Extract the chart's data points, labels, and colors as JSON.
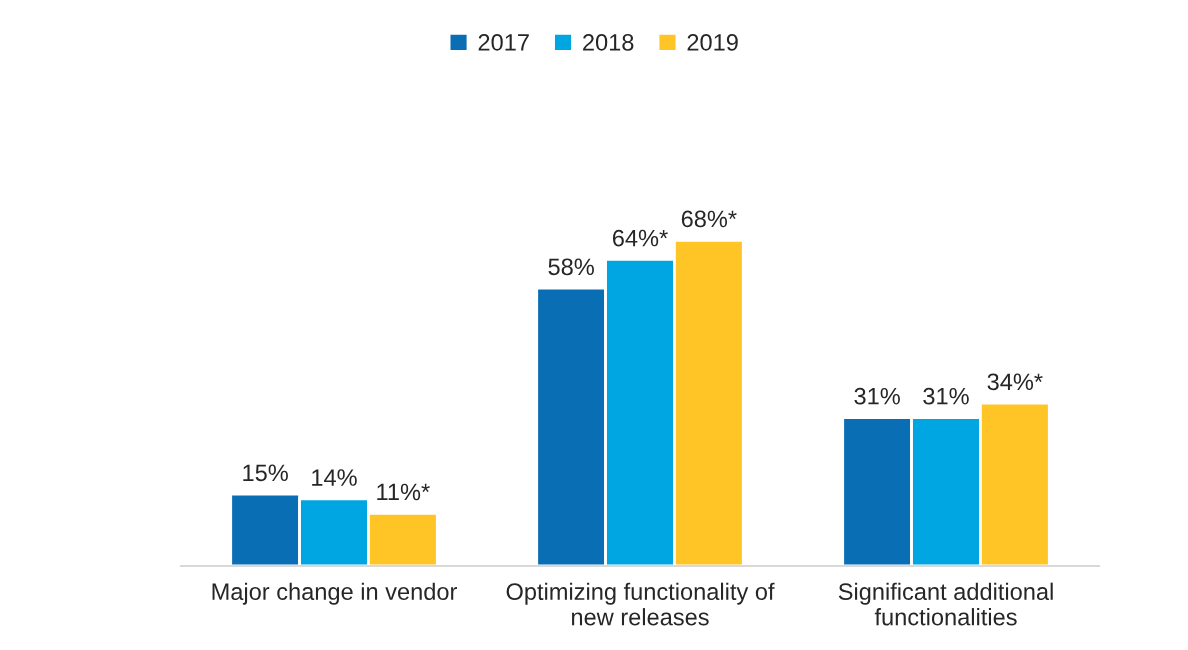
{
  "chart_data": {
    "type": "bar",
    "categories": [
      "Major change in vendor",
      "Optimizing functionality of\nnew releases",
      "Significant additional\nfunctionalities"
    ],
    "series": [
      {
        "name": "2017",
        "color": "#0a6eb4",
        "values": [
          15,
          58,
          31
        ],
        "value_labels": [
          "15%",
          "58%",
          "31%"
        ]
      },
      {
        "name": "2018",
        "color": "#00a6e2",
        "values": [
          14,
          64,
          31
        ],
        "value_labels": [
          "14%",
          "64%*",
          "31%"
        ]
      },
      {
        "name": "2019",
        "color": "#ffc425",
        "values": [
          11,
          68,
          34
        ],
        "value_labels": [
          "11%*",
          "68%*",
          "34%*"
        ]
      }
    ],
    "legend": "top",
    "grid": false
  }
}
